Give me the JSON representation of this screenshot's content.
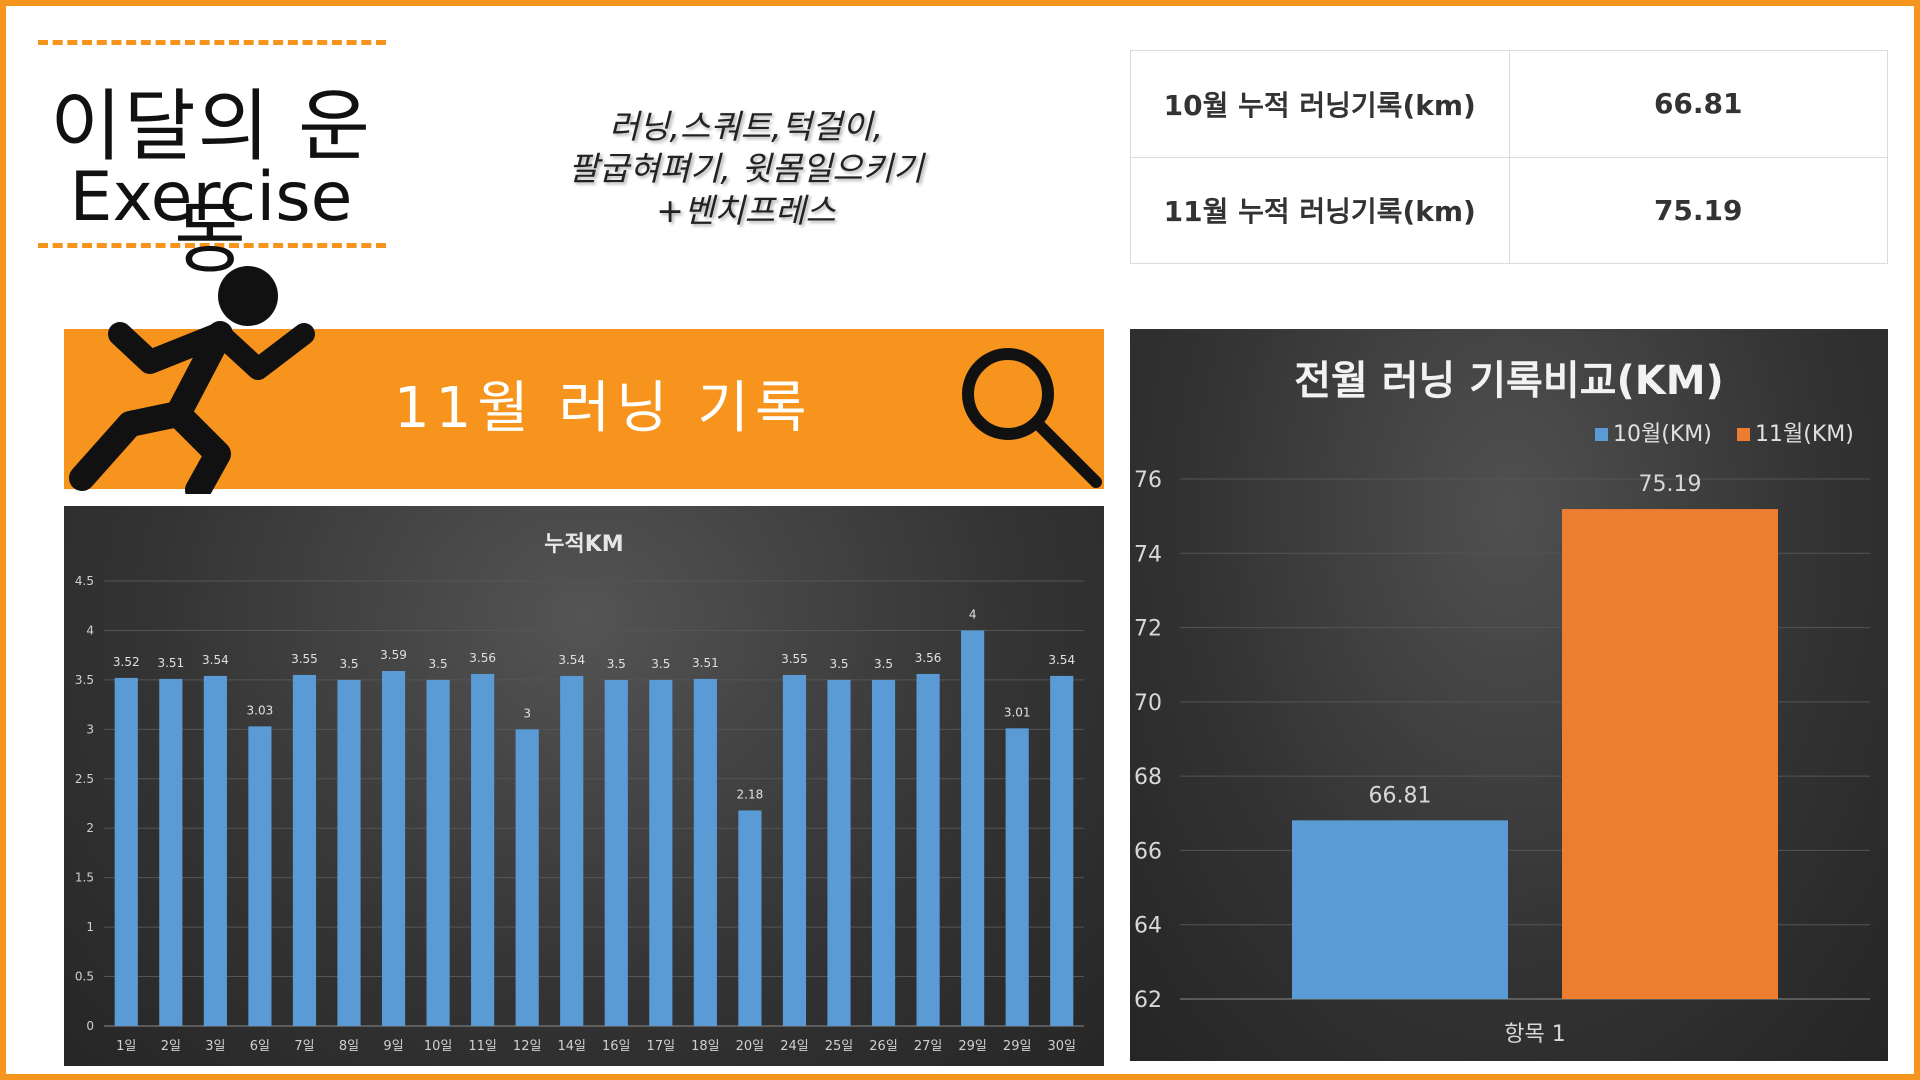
{
  "header": {
    "title_ko": "이달의 운동",
    "title_en": "Exercise",
    "exercise_lines": [
      "러닝,스쿼트,턱걸이,",
      "팔굽혀펴기, 윗몸일으키기",
      "+벤치프레스"
    ]
  },
  "summary_table": [
    {
      "label": "10월 누적 러닝기록(km)",
      "value": "66.81"
    },
    {
      "label": "11월 누적 러닝기록(km)",
      "value": "75.19"
    }
  ],
  "banner": {
    "title": "11월 러닝 기록"
  },
  "icons": [
    "runner-icon",
    "search-icon"
  ],
  "colors": {
    "accent": "#f7941d",
    "bar_blue": "#5b9bd5",
    "bar_orange": "#ed7d31"
  },
  "chart_data": [
    {
      "type": "bar",
      "title": "누적KM",
      "categories": [
        "1일",
        "2일",
        "3일",
        "6일",
        "7일",
        "8일",
        "9일",
        "10일",
        "11일",
        "12일",
        "14일",
        "16일",
        "17일",
        "18일",
        "20일",
        "24일",
        "25일",
        "26일",
        "27일",
        "29일",
        "29일",
        "30일"
      ],
      "values": [
        3.52,
        3.51,
        3.54,
        3.03,
        3.55,
        3.5,
        3.59,
        3.5,
        3.56,
        3,
        3.54,
        3.5,
        3.5,
        3.51,
        2.18,
        3.55,
        3.5,
        3.5,
        3.56,
        4,
        3.01,
        3.54
      ],
      "ylim": [
        0,
        4.5
      ],
      "yticks": [
        "0",
        "0.5",
        "1",
        "1.5",
        "2",
        "2.5",
        "3",
        "3.5",
        "4",
        "4.5"
      ],
      "grid": true
    },
    {
      "type": "bar",
      "title": "전월 러닝 기록비교(KM)",
      "categories": [
        "항목 1"
      ],
      "series": [
        {
          "name": "10월(KM)",
          "values": [
            66.81
          ]
        },
        {
          "name": "11월(KM)",
          "values": [
            75.19
          ]
        }
      ],
      "ylim": [
        62,
        76
      ],
      "yticks": [
        "62",
        "64",
        "66",
        "68",
        "70",
        "72",
        "74",
        "76"
      ],
      "legend": "top-right",
      "grid": true
    }
  ]
}
